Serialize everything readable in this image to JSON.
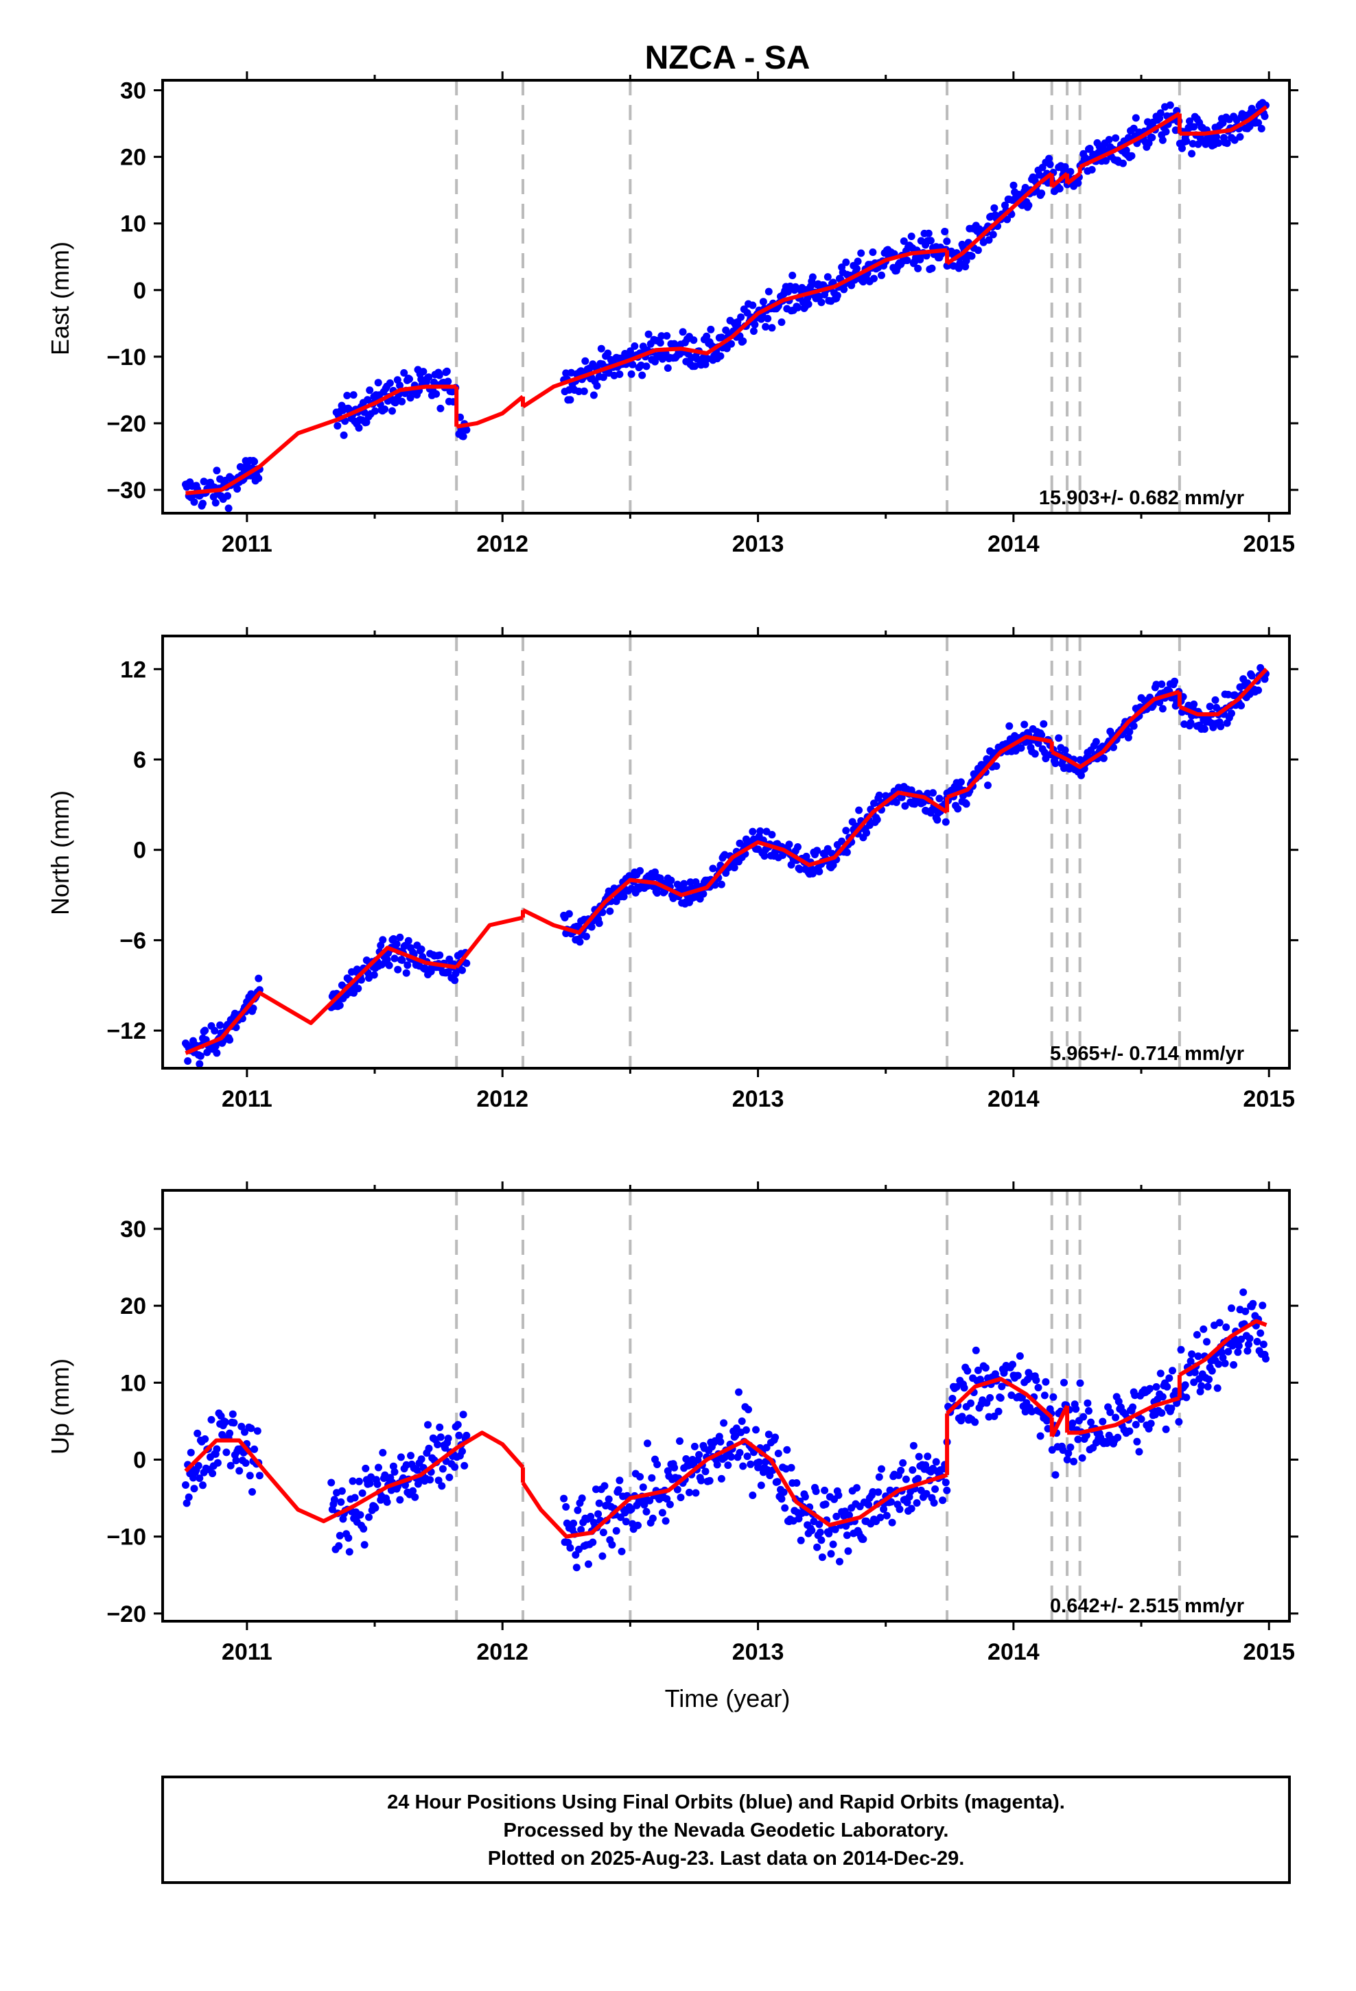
{
  "title": "NZCA - SA",
  "xlabel": "Time (year)",
  "footer": {
    "lines": [
      "24 Hour Positions Using Final Orbits (blue) and Rapid Orbits (magenta).",
      "Processed by the Nevada Geodetic Laboratory.",
      "Plotted on 2025-Aug-23. Last data on 2014-Dec-29."
    ]
  },
  "colors": {
    "points": "#0000ff",
    "model": "#ff0000",
    "breaks": "#bbbbbb",
    "frame": "#000000"
  },
  "chart_data": [
    {
      "type": "scatter",
      "ylabel": "East (mm)",
      "xlim": [
        2010.67,
        2015.08
      ],
      "ylim": [
        -33.5,
        31.5
      ],
      "x_ticks": [
        2011,
        2012,
        2013,
        2014,
        2015
      ],
      "x_tick_labels": [
        "2011",
        "2012",
        "2013",
        "2014",
        "2015"
      ],
      "y_ticks": [
        -30,
        -20,
        -10,
        0,
        10,
        20,
        30
      ],
      "y_tick_labels": [
        "−30",
        "−20",
        "−10",
        "0",
        "10",
        "20",
        "30"
      ],
      "rate_label": "15.903+/- 0.682 mm/yr",
      "breaks": [
        2011.82,
        2012.08,
        2012.5,
        2013.74,
        2014.15,
        2014.21,
        2014.26,
        2014.65
      ],
      "data_segments": [
        [
          2010.76,
          2011.05
        ],
        [
          2011.35,
          2011.82
        ],
        [
          2011.83,
          2011.86
        ],
        [
          2012.24,
          2013.74
        ],
        [
          2013.74,
          2014.99
        ]
      ],
      "model": [
        {
          "x": [
            2010.76,
            2010.9,
            2011.05,
            2011.2,
            2011.35,
            2011.5,
            2011.6,
            2011.7,
            2011.82
          ],
          "y": [
            -30.5,
            -30.0,
            -26.5,
            -21.5,
            -19.5,
            -17.0,
            -15.0,
            -14.5,
            -14.5
          ]
        },
        {
          "x": [
            2011.82,
            2011.9,
            2012.0,
            2012.08
          ],
          "y": [
            -20.5,
            -20.0,
            -18.5,
            -16.0
          ]
        },
        {
          "x": [
            2012.08,
            2012.2,
            2012.35,
            2012.5,
            2012.6,
            2012.7,
            2012.8,
            2012.9,
            2013.0,
            2013.1,
            2013.2,
            2013.3,
            2013.4,
            2013.5,
            2013.6,
            2013.74
          ],
          "y": [
            -17.5,
            -14.5,
            -12.5,
            -10.5,
            -9.0,
            -8.8,
            -9.5,
            -7.0,
            -3.5,
            -1.5,
            -0.5,
            0.5,
            2.5,
            4.5,
            5.5,
            6.0
          ]
        },
        {
          "x": [
            2013.74,
            2013.8,
            2013.9,
            2014.0,
            2014.1,
            2014.15
          ],
          "y": [
            4.0,
            5.5,
            9.0,
            12.5,
            16.0,
            17.5
          ]
        },
        {
          "x": [
            2014.15,
            2014.21
          ],
          "y": [
            15.5,
            17.5
          ]
        },
        {
          "x": [
            2014.21,
            2014.26
          ],
          "y": [
            16.0,
            17.5
          ]
        },
        {
          "x": [
            2014.26,
            2014.4,
            2014.5,
            2014.65
          ],
          "y": [
            18.5,
            21.0,
            23.0,
            26.5
          ]
        },
        {
          "x": [
            2014.65,
            2014.75,
            2014.85,
            2014.92,
            2014.99
          ],
          "y": [
            23.5,
            23.5,
            24.0,
            25.5,
            27.5
          ]
        }
      ]
    },
    {
      "type": "scatter",
      "ylabel": "North (mm)",
      "xlim": [
        2010.67,
        2015.08
      ],
      "ylim": [
        -14.5,
        14.2
      ],
      "x_ticks": [
        2011,
        2012,
        2013,
        2014,
        2015
      ],
      "x_tick_labels": [
        "2011",
        "2012",
        "2013",
        "2014",
        "2015"
      ],
      "y_ticks": [
        -12,
        -6,
        0,
        6,
        12
      ],
      "y_tick_labels": [
        "−12",
        "−6",
        "0",
        "6",
        "12"
      ],
      "rate_label": "5.965+/- 0.714 mm/yr",
      "breaks": [
        2011.82,
        2012.08,
        2012.5,
        2013.74,
        2014.15,
        2014.21,
        2014.26,
        2014.65
      ],
      "data_segments": [
        [
          2010.76,
          2011.05
        ],
        [
          2011.33,
          2011.86
        ],
        [
          2012.24,
          2013.74
        ],
        [
          2013.74,
          2014.99
        ]
      ],
      "model": [
        {
          "x": [
            2010.76,
            2010.9,
            2011.05,
            2011.15,
            2011.25,
            2011.4,
            2011.55,
            2011.7,
            2011.82
          ],
          "y": [
            -13.5,
            -12.5,
            -9.5,
            -10.5,
            -11.5,
            -9.0,
            -6.5,
            -7.5,
            -7.8
          ]
        },
        {
          "x": [
            2011.82,
            2011.95,
            2012.08
          ],
          "y": [
            -7.8,
            -5.0,
            -4.5
          ]
        },
        {
          "x": [
            2012.08,
            2012.2,
            2012.3,
            2012.4,
            2012.5,
            2012.6,
            2012.7,
            2012.8,
            2012.9,
            2013.0,
            2013.1,
            2013.2,
            2013.3,
            2013.45,
            2013.55,
            2013.65,
            2013.74
          ],
          "y": [
            -4.0,
            -5.0,
            -5.5,
            -3.5,
            -2.0,
            -2.2,
            -3.0,
            -2.5,
            -0.5,
            0.5,
            0.0,
            -1.0,
            -0.5,
            2.5,
            3.8,
            3.5,
            2.5
          ]
        },
        {
          "x": [
            2013.74,
            2013.82,
            2013.95,
            2014.05,
            2014.15
          ],
          "y": [
            3.5,
            4.0,
            6.5,
            7.5,
            7.2
          ]
        },
        {
          "x": [
            2014.15,
            2014.21,
            2014.26,
            2014.35,
            2014.45,
            2014.55,
            2014.65
          ],
          "y": [
            6.5,
            6.0,
            5.5,
            6.5,
            8.5,
            10.0,
            10.5
          ]
        },
        {
          "x": [
            2014.65,
            2014.72,
            2014.8,
            2014.88,
            2014.99
          ],
          "y": [
            9.5,
            9.0,
            9.0,
            10.0,
            12.0
          ]
        }
      ]
    },
    {
      "type": "scatter",
      "ylabel": "Up (mm)",
      "xlim": [
        2010.67,
        2015.08
      ],
      "ylim": [
        -21,
        35
      ],
      "x_ticks": [
        2011,
        2012,
        2013,
        2014,
        2015
      ],
      "x_tick_labels": [
        "2011",
        "2012",
        "2013",
        "2014",
        "2015"
      ],
      "y_ticks": [
        -20,
        -10,
        0,
        10,
        20,
        30
      ],
      "y_tick_labels": [
        "−20",
        "−10",
        "0",
        "10",
        "20",
        "30"
      ],
      "rate_label": "0.642+/- 2.515 mm/yr",
      "breaks": [
        2011.82,
        2012.08,
        2012.5,
        2013.74,
        2014.15,
        2014.21,
        2014.26,
        2014.65
      ],
      "data_segments": [
        [
          2010.76,
          2011.05
        ],
        [
          2011.33,
          2011.86
        ],
        [
          2012.24,
          2013.74
        ],
        [
          2013.74,
          2014.99
        ]
      ],
      "model": [
        {
          "x": [
            2010.76,
            2010.88,
            2010.97,
            2011.07,
            2011.2,
            2011.3,
            2011.42,
            2011.55,
            2011.68,
            2011.82,
            2011.92,
            2012.0,
            2012.08
          ],
          "y": [
            -1.5,
            2.5,
            2.5,
            -1.5,
            -6.5,
            -8.0,
            -6.0,
            -3.5,
            -2.0,
            1.5,
            3.5,
            2.0,
            -1.0
          ]
        },
        {
          "x": [
            2012.08,
            2012.15,
            2012.25,
            2012.35,
            2012.5,
            2012.65,
            2012.8,
            2012.95,
            2013.05,
            2013.15,
            2013.28,
            2013.4,
            2013.55,
            2013.74
          ],
          "y": [
            -3.0,
            -6.5,
            -10.0,
            -9.5,
            -5.0,
            -4.0,
            0.0,
            2.5,
            0.0,
            -5.5,
            -8.5,
            -7.5,
            -4.0,
            -2.0
          ]
        },
        {
          "x": [
            2013.74,
            2013.85,
            2013.95,
            2014.05,
            2014.15
          ],
          "y": [
            6.0,
            9.5,
            10.5,
            8.5,
            5.5
          ]
        },
        {
          "x": [
            2014.15,
            2014.21
          ],
          "y": [
            3.0,
            7.0
          ]
        },
        {
          "x": [
            2014.21,
            2014.26,
            2014.4,
            2014.55,
            2014.65
          ],
          "y": [
            3.5,
            3.5,
            4.5,
            7.0,
            8.0
          ]
        },
        {
          "x": [
            2014.65,
            2014.75,
            2014.85,
            2014.95,
            2014.99
          ],
          "y": [
            11.0,
            13.0,
            16.0,
            18.0,
            17.5
          ]
        }
      ]
    }
  ]
}
